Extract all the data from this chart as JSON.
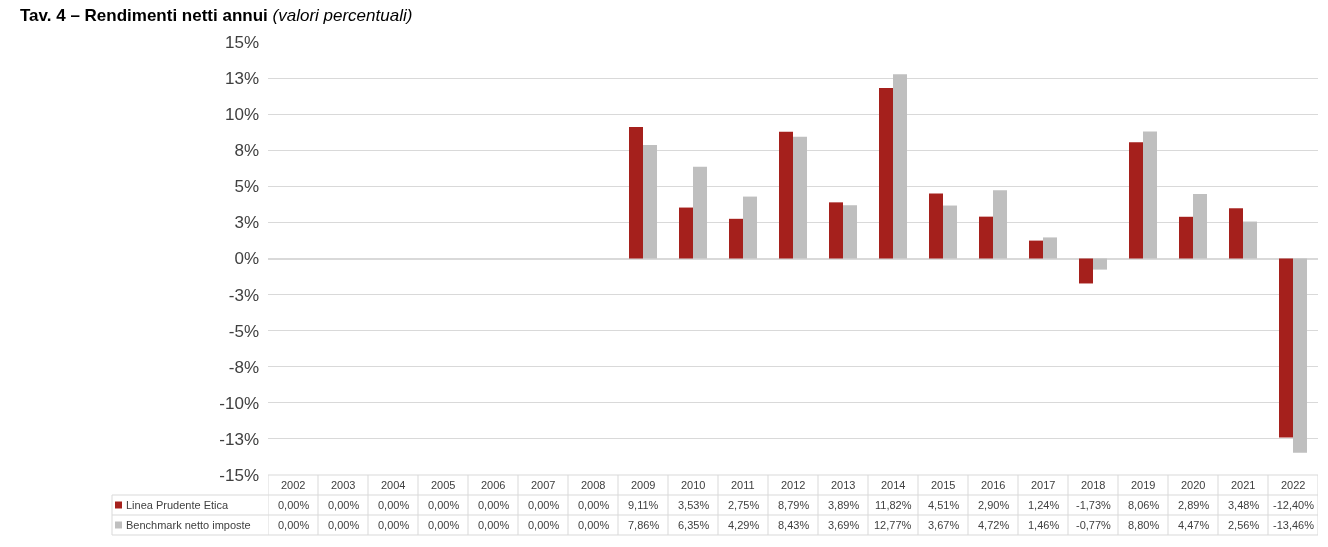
{
  "chart_data": {
    "type": "bar",
    "title": "Tav. 4 – Rendimenti netti annui",
    "subtitle": "(valori percentuali)",
    "categories": [
      "2002",
      "2003",
      "2004",
      "2005",
      "2006",
      "2007",
      "2008",
      "2009",
      "2010",
      "2011",
      "2012",
      "2013",
      "2014",
      "2015",
      "2016",
      "2017",
      "2018",
      "2019",
      "2020",
      "2021",
      "2022"
    ],
    "series": [
      {
        "name": "Linea Prudente Etica",
        "color": "#a5201c",
        "values": [
          0,
          0,
          0,
          0,
          0,
          0,
          0,
          9.11,
          3.53,
          2.75,
          8.79,
          3.89,
          11.82,
          4.51,
          2.9,
          1.24,
          -1.73,
          8.06,
          2.89,
          3.48,
          -12.4
        ],
        "value_labels": [
          "0,00%",
          "0,00%",
          "0,00%",
          "0,00%",
          "0,00%",
          "0,00%",
          "0,00%",
          "9,11%",
          "3,53%",
          "2,75%",
          "8,79%",
          "3,89%",
          "11,82%",
          "4,51%",
          "2,90%",
          "1,24%",
          "-1,73%",
          "8,06%",
          "2,89%",
          "3,48%",
          "-12,40%"
        ]
      },
      {
        "name": "Benchmark netto imposte",
        "color": "#bfbfbf",
        "values": [
          0,
          0,
          0,
          0,
          0,
          0,
          0,
          7.86,
          6.35,
          4.29,
          8.43,
          3.69,
          12.77,
          3.67,
          4.72,
          1.46,
          -0.77,
          8.8,
          4.47,
          2.56,
          -13.46
        ],
        "value_labels": [
          "0,00%",
          "0,00%",
          "0,00%",
          "0,00%",
          "0,00%",
          "0,00%",
          "0,00%",
          "7,86%",
          "6,35%",
          "4,29%",
          "8,43%",
          "3,69%",
          "12,77%",
          "3,67%",
          "4,72%",
          "1,46%",
          "-0,77%",
          "8,80%",
          "4,47%",
          "2,56%",
          "-13,46%"
        ]
      }
    ],
    "ylim": [
      -15,
      15
    ],
    "yticks": [
      {
        "value": 15,
        "label": "15%"
      },
      {
        "value": 12.5,
        "label": "13%"
      },
      {
        "value": 10,
        "label": "10%"
      },
      {
        "value": 7.5,
        "label": "8%"
      },
      {
        "value": 5,
        "label": "5%"
      },
      {
        "value": 2.5,
        "label": "3%"
      },
      {
        "value": 0,
        "label": "0%"
      },
      {
        "value": -2.5,
        "label": "-3%"
      },
      {
        "value": -5,
        "label": "-5%"
      },
      {
        "value": -7.5,
        "label": "-8%"
      },
      {
        "value": -10,
        "label": "-10%"
      },
      {
        "value": -12.5,
        "label": "-13%"
      },
      {
        "value": -15,
        "label": "-15%"
      }
    ],
    "grid": "y",
    "legend": "bottom left"
  }
}
